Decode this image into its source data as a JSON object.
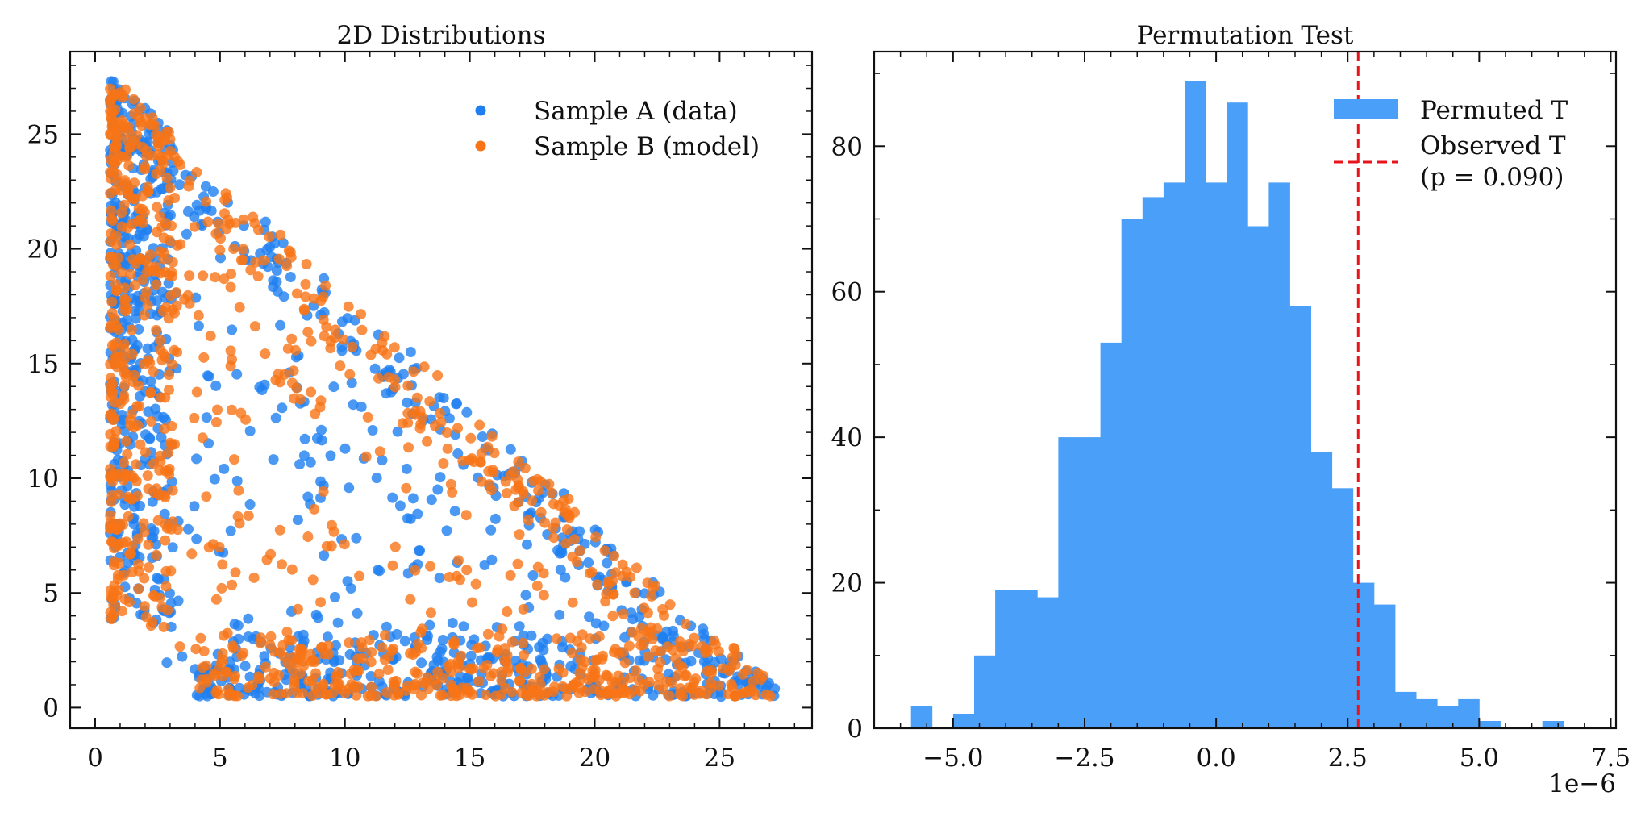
{
  "colors": {
    "sample_a": "#1f7ff0",
    "sample_b": "#f77417",
    "hist": "#4aa0f8",
    "observed": "#e8141c",
    "axis": "#111111"
  },
  "chart_data": [
    {
      "type": "scatter",
      "title": "2D Distributions",
      "xlabel": "",
      "ylabel": "",
      "xlim": [
        -1,
        28.7
      ],
      "ylim": [
        -0.9,
        28.6
      ],
      "xticks": [
        0,
        5,
        10,
        15,
        20,
        25
      ],
      "yticks": [
        0,
        5,
        10,
        15,
        20,
        25
      ],
      "legend_position": "top-right",
      "series": [
        {
          "name": "Sample A (data)",
          "color_key": "sample_a",
          "n_points": 1100,
          "region": {
            "vertices": [
              [
                0.6,
                27.3
              ],
              [
                27.4,
                0.5
              ],
              [
                16,
                0.5
              ],
              [
                4,
                1.8
              ],
              [
                0.6,
                16
              ]
            ]
          }
        },
        {
          "name": "Sample B (model)",
          "color_key": "sample_b",
          "n_points": 1100,
          "region": {
            "vertices": [
              [
                0.6,
                27.3
              ],
              [
                27.4,
                0.5
              ],
              [
                16,
                0.5
              ],
              [
                4,
                1.8
              ],
              [
                0.6,
                16
              ]
            ]
          }
        }
      ]
    },
    {
      "type": "bar",
      "title": "Permutation Test",
      "subtype": "histogram",
      "xlabel": "",
      "ylabel": "",
      "x_offset_label": "1e−6",
      "xlim": [
        -6.5,
        7.6
      ],
      "ylim": [
        0,
        93
      ],
      "xticks": [
        -5.0,
        -2.5,
        0.0,
        2.5,
        5.0,
        7.5
      ],
      "xtick_labels": [
        "−5.0",
        "−2.5",
        "0.0",
        "2.5",
        "5.0",
        "7.5"
      ],
      "yticks": [
        0,
        20,
        40,
        60,
        80
      ],
      "bin_edges": [
        -5.8,
        -5.4,
        -5.0,
        -4.6,
        -4.2,
        -3.8,
        -3.4,
        -3.0,
        -2.6,
        -2.2,
        -1.8,
        -1.4,
        -1.0,
        -0.6,
        -0.2,
        0.2,
        0.6,
        1.0,
        1.4,
        1.8,
        2.2,
        2.6,
        3.0,
        3.4,
        3.8,
        4.2,
        4.6,
        5.0,
        5.4,
        5.8,
        6.2,
        6.6,
        7.0
      ],
      "counts": [
        3,
        0,
        2,
        10,
        19,
        19,
        18,
        40,
        40,
        53,
        70,
        73,
        75,
        89,
        75,
        86,
        69,
        75,
        58,
        38,
        33,
        20,
        17,
        5,
        4,
        3,
        4,
        1,
        0,
        0,
        1,
        0
      ],
      "observed_T": 2.7,
      "p_value_text": "(p = 0.090)",
      "legend_position": "top-right",
      "legend": [
        {
          "label": "Permuted T",
          "kind": "patch",
          "color_key": "hist"
        },
        {
          "label": "Observed T",
          "kind": "dashed-line",
          "color_key": "observed"
        }
      ]
    }
  ]
}
